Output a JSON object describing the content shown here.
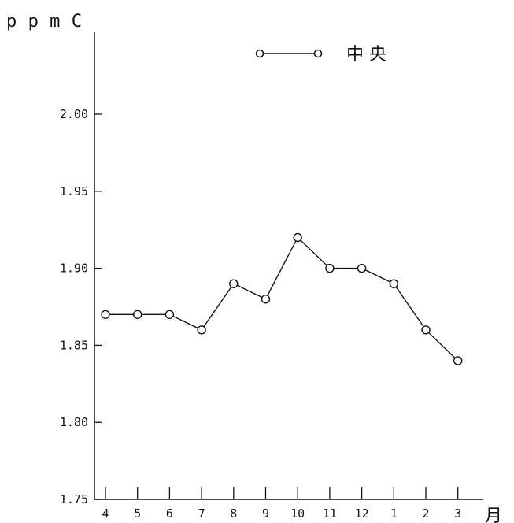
{
  "chart_data": {
    "type": "line",
    "ylabel": "ppmC",
    "xlabel": "月",
    "categories": [
      "4",
      "5",
      "6",
      "7",
      "8",
      "9",
      "10",
      "11",
      "12",
      "1",
      "2",
      "3"
    ],
    "ylim": [
      1.75,
      2.03
    ],
    "yticks": [
      1.75,
      1.8,
      1.85,
      1.9,
      1.95,
      2.0
    ],
    "ytick_labels": [
      "1.75",
      "1.80",
      "1.85",
      "1.90",
      "1.95",
      "2.00"
    ],
    "legend": {
      "placement": "top-center"
    },
    "series": [
      {
        "name": "中 央",
        "marker": "open-circle",
        "color": "#111111",
        "values": [
          1.87,
          1.87,
          1.87,
          1.86,
          1.89,
          1.88,
          1.92,
          1.9,
          1.9,
          1.89,
          1.86,
          1.84
        ]
      }
    ],
    "grid": false
  }
}
